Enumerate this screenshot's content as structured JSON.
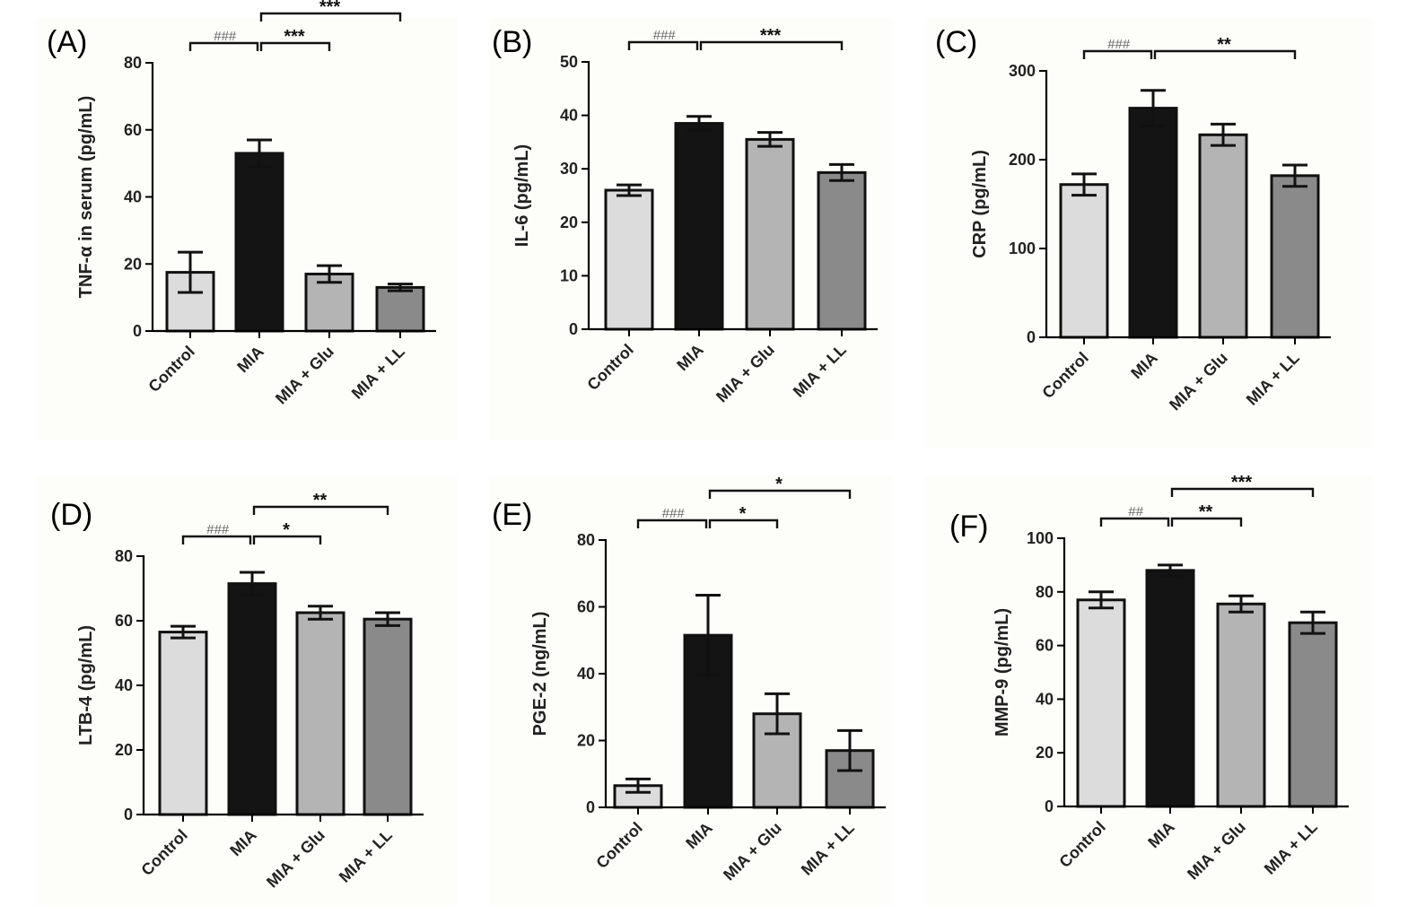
{
  "chart_data": [
    {
      "type": "bar",
      "panel_label": "(A)",
      "categories": [
        "Control",
        "MIA",
        "MIA + Glu",
        "MIA + LL"
      ],
      "values": [
        17.5,
        53,
        17,
        13
      ],
      "errors": [
        6,
        4,
        2.5,
        1
      ],
      "colors": [
        "#dcdcdc",
        "#141414",
        "#b4b4b4",
        "#8a8a8a"
      ],
      "ylabel": "TNF-α in serum (pg/mL)",
      "ylim": [
        0,
        80
      ],
      "yticks": [
        0,
        20,
        40,
        60,
        80
      ],
      "significance": [
        {
          "from": 0,
          "to": 1,
          "label": "###",
          "level": 1
        },
        {
          "from": 1,
          "to": 2,
          "label": "***",
          "level": 1
        },
        {
          "from": 1,
          "to": 3,
          "label": "***",
          "level": 2
        }
      ]
    },
    {
      "type": "bar",
      "panel_label": "(B)",
      "categories": [
        "Control",
        "MIA",
        "MIA + Glu",
        "MIA + LL"
      ],
      "values": [
        26,
        38.5,
        35.5,
        29.3
      ],
      "errors": [
        1,
        1.3,
        1.3,
        1.5
      ],
      "colors": [
        "#dcdcdc",
        "#141414",
        "#b4b4b4",
        "#8a8a8a"
      ],
      "ylabel": "IL-6 (pg/mL)",
      "ylim": [
        0,
        50
      ],
      "yticks": [
        0,
        10,
        20,
        30,
        40,
        50
      ],
      "significance": [
        {
          "from": 0,
          "to": 1,
          "label": "###",
          "level": 1
        },
        {
          "from": 1,
          "to": 3,
          "label": "***",
          "level": 1
        }
      ]
    },
    {
      "type": "bar",
      "panel_label": "(C)",
      "categories": [
        "Control",
        "MIA",
        "MIA + Glu",
        "MIA + LL"
      ],
      "values": [
        172,
        258,
        228,
        182
      ],
      "errors": [
        12,
        20,
        12,
        12
      ],
      "colors": [
        "#dcdcdc",
        "#141414",
        "#b4b4b4",
        "#8a8a8a"
      ],
      "ylabel": "CRP (pg/mL)",
      "ylim": [
        0,
        300
      ],
      "yticks": [
        0,
        100,
        200,
        300
      ],
      "significance": [
        {
          "from": 0,
          "to": 1,
          "label": "###",
          "level": 1
        },
        {
          "from": 1,
          "to": 3,
          "label": "**",
          "level": 1
        }
      ]
    },
    {
      "type": "bar",
      "panel_label": "(D)",
      "categories": [
        "Control",
        "MIA",
        "MIA + Glu",
        "MIA + LL"
      ],
      "values": [
        56.5,
        71.5,
        62.5,
        60.5
      ],
      "errors": [
        1.8,
        3.5,
        2,
        2
      ],
      "colors": [
        "#dcdcdc",
        "#141414",
        "#b4b4b4",
        "#8a8a8a"
      ],
      "ylabel": "LTB-4 (pg/mL)",
      "ylim": [
        0,
        80
      ],
      "yticks": [
        0,
        20,
        40,
        60,
        80
      ],
      "significance": [
        {
          "from": 0,
          "to": 1,
          "label": "###",
          "level": 1
        },
        {
          "from": 1,
          "to": 2,
          "label": "*",
          "level": 1
        },
        {
          "from": 1,
          "to": 3,
          "label": "**",
          "level": 2
        }
      ]
    },
    {
      "type": "bar",
      "panel_label": "(E)",
      "categories": [
        "Control",
        "MIA",
        "MIA + Glu",
        "MIA + LL"
      ],
      "values": [
        6.5,
        51.5,
        28,
        17
      ],
      "errors": [
        2,
        12,
        6,
        6
      ],
      "colors": [
        "#dcdcdc",
        "#141414",
        "#b4b4b4",
        "#8a8a8a"
      ],
      "ylabel": "PGE-2 (ng/mL)",
      "ylim": [
        0,
        80
      ],
      "yticks": [
        0,
        20,
        40,
        60,
        80
      ],
      "significance": [
        {
          "from": 0,
          "to": 1,
          "label": "###",
          "level": 1
        },
        {
          "from": 1,
          "to": 2,
          "label": "*",
          "level": 1
        },
        {
          "from": 1,
          "to": 3,
          "label": "*",
          "level": 2
        }
      ]
    },
    {
      "type": "bar",
      "panel_label": "(F)",
      "categories": [
        "Control",
        "MIA",
        "MIA + Glu",
        "MIA + LL"
      ],
      "values": [
        77,
        88,
        75.5,
        68.5
      ],
      "errors": [
        3,
        2,
        3,
        4
      ],
      "colors": [
        "#dcdcdc",
        "#141414",
        "#b4b4b4",
        "#8a8a8a"
      ],
      "ylabel": "MMP-9 (pg/mL)",
      "ylim": [
        0,
        100
      ],
      "yticks": [
        0,
        20,
        40,
        60,
        80,
        100
      ],
      "significance": [
        {
          "from": 0,
          "to": 1,
          "label": "##",
          "level": 1
        },
        {
          "from": 1,
          "to": 2,
          "label": "**",
          "level": 1
        },
        {
          "from": 1,
          "to": 3,
          "label": "***",
          "level": 2
        }
      ]
    }
  ]
}
